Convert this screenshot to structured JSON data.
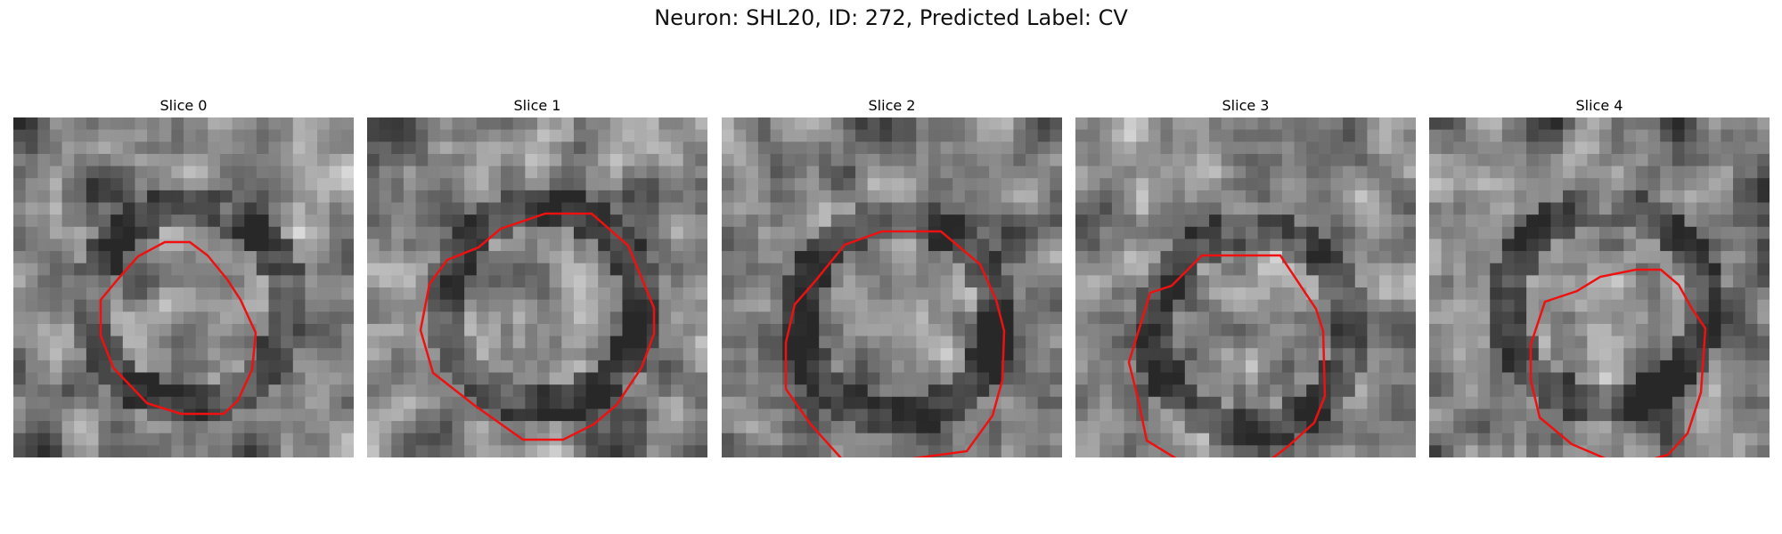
{
  "figure": {
    "title": "Neuron: SHL20, ID: 272, Predicted Label: CV",
    "contour_color": "#ee1111"
  },
  "panels": [
    {
      "label": "Slice 0",
      "seed": 11,
      "dark_ring": true
    },
    {
      "label": "Slice 1",
      "seed": 23,
      "dark_ring": true
    },
    {
      "label": "Slice 2",
      "seed": 37,
      "dark_ring": true
    },
    {
      "label": "Slice 3",
      "seed": 41,
      "dark_ring": true
    },
    {
      "label": "Slice 4",
      "seed": 53,
      "dark_ring": true
    }
  ]
}
